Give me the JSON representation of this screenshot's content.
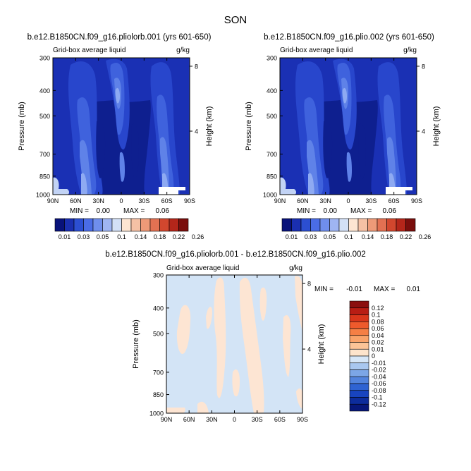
{
  "page_title": "SON",
  "chart_data": [
    {
      "type": "heatmap",
      "title": "b.e12.B1850CN.f09_g16.pliolorb.001 (yrs 601-650)",
      "subtitle_left": "Grid-box average liquid",
      "subtitle_right": "g/kg",
      "ylabel": "Pressure (mb)",
      "ylabel_right": "Height (km)",
      "x_ticks": [
        "90N",
        "60N",
        "30N",
        "0",
        "30S",
        "60S",
        "90S"
      ],
      "x_range": [
        90,
        -90
      ],
      "y_ticks": [
        "300",
        "400",
        "500",
        "700",
        "850",
        "1000"
      ],
      "y_range": [
        300,
        1000
      ],
      "y_scale": "log",
      "height_ticks": [
        "8",
        "4"
      ],
      "min_label": "MIN =",
      "min_value": "0.00",
      "max_label": "MAX =",
      "max_value": "0.06",
      "colorbar_levels": [
        "0.01",
        "0.03",
        "0.05",
        "0.1",
        "0.14",
        "0.18",
        "0.22",
        "0.26"
      ],
      "colorbar_orientation": "horizontal",
      "colorbar_colors": [
        "#08127a",
        "#1a2fb0",
        "#2c4fd2",
        "#4a6ce6",
        "#6f8eed",
        "#9fb5f2",
        "#d3e0f6",
        "#fde5d2",
        "#f5c1a5",
        "#ee9a78",
        "#e37152",
        "#d2472e",
        "#b4261a",
        "#7a0e0c"
      ]
    },
    {
      "type": "heatmap",
      "title": "b.e12.B1850CN.f09_g16.plio.002 (yrs 601-650)",
      "subtitle_left": "Grid-box average liquid",
      "subtitle_right": "g/kg",
      "ylabel": "Pressure (mb)",
      "ylabel_right": "Height (km)",
      "x_ticks": [
        "90N",
        "60N",
        "30N",
        "0",
        "30S",
        "60S",
        "90S"
      ],
      "x_range": [
        90,
        -90
      ],
      "y_ticks": [
        "300",
        "400",
        "500",
        "700",
        "850",
        "1000"
      ],
      "y_range": [
        300,
        1000
      ],
      "y_scale": "log",
      "height_ticks": [
        "8",
        "4"
      ],
      "min_label": "MIN =",
      "min_value": "0.00",
      "max_label": "MAX =",
      "max_value": "0.06",
      "colorbar_levels": [
        "0.01",
        "0.03",
        "0.05",
        "0.1",
        "0.14",
        "0.18",
        "0.22",
        "0.26"
      ],
      "colorbar_orientation": "horizontal"
    },
    {
      "type": "heatmap",
      "title": "b.e12.B1850CN.f09_g16.pliolorb.001 - b.e12.B1850CN.f09_g16.plio.002",
      "subtitle_left": "Grid-box average liquid",
      "subtitle_right": "g/kg",
      "ylabel": "Pressure (mb)",
      "ylabel_right": "Height (km)",
      "x_ticks": [
        "90N",
        "60N",
        "30N",
        "0",
        "30S",
        "60S",
        "90S"
      ],
      "x_range": [
        90,
        -90
      ],
      "y_ticks": [
        "300",
        "400",
        "500",
        "700",
        "850",
        "1000"
      ],
      "y_range": [
        300,
        1000
      ],
      "y_scale": "log",
      "height_ticks": [
        "8",
        "4"
      ],
      "min_label": "MIN =",
      "min_value": "-0.01",
      "max_label": "MAX =",
      "max_value": "0.01",
      "colorbar_levels": [
        "0.12",
        "0.1",
        "0.08",
        "0.06",
        "0.04",
        "0.02",
        "0.01",
        "0",
        "-0.01",
        "-0.02",
        "-0.04",
        "-0.06",
        "-0.08",
        "-0.1",
        "-0.12"
      ],
      "colorbar_orientation": "vertical",
      "colorbar_colors": [
        "#8b0f0f",
        "#b81d14",
        "#d9361b",
        "#ee5a2c",
        "#f57f45",
        "#f9a36a",
        "#fbc497",
        "#fde4cc",
        "#d6e6f7",
        "#a9c7ef",
        "#7ca6e6",
        "#5384dd",
        "#2f63d2",
        "#1844bf",
        "#0d2c9c",
        "#07177a"
      ],
      "field_colors": {
        "background": "#d3e4f6",
        "positive": "#fde5d3"
      }
    }
  ]
}
